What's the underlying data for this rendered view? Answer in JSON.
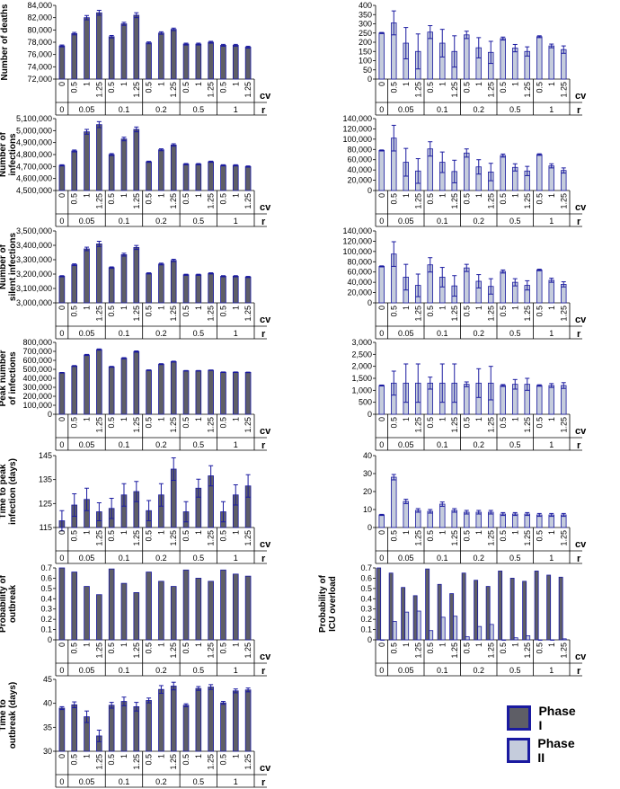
{
  "colors": {
    "phase1": "#5e5e66",
    "phase2": "#c5ccdc",
    "outline": "#1a1aa0"
  },
  "legend": {
    "phase1": "Phase I",
    "phase2": "Phase II"
  },
  "axis_labels": {
    "cv": "cv",
    "r": "r"
  },
  "cv_ticks": [
    "0",
    "0.5",
    "1",
    "1.25",
    "0.5",
    "1",
    "1.25",
    "0.5",
    "1",
    "1.25",
    "0.5",
    "1",
    "1.25",
    "0.5",
    "1",
    "1.25"
  ],
  "r_groups": [
    "0",
    "0.05",
    "0.1",
    "0.2",
    "0.5",
    "1"
  ],
  "chart_data": [
    {
      "id": "deaths-1",
      "type": "bar",
      "ylabel": "Number of deaths",
      "ylim": [
        72000,
        84000
      ],
      "yticks": [
        "72,000",
        "74,000",
        "76,000",
        "78,000",
        "80,000",
        "82,000",
        "84,000"
      ],
      "series": [
        {
          "name": "Phase I",
          "values": [
            77400,
            79400,
            82000,
            82800,
            78900,
            81000,
            82400,
            77900,
            79500,
            80100,
            77700,
            77700,
            78000,
            77500,
            77500,
            77200
          ],
          "errors": [
            150,
            200,
            350,
            400,
            200,
            250,
            400,
            150,
            200,
            200,
            150,
            150,
            150,
            150,
            150,
            150
          ]
        }
      ]
    },
    {
      "id": "deaths-2",
      "type": "bar",
      "ylabel": "",
      "ylim": [
        0,
        400
      ],
      "yticks": [
        "0",
        "50",
        "100",
        "150",
        "200",
        "250",
        "300",
        "350",
        "400"
      ],
      "series": [
        {
          "name": "Phase II",
          "values": [
            250,
            305,
            195,
            150,
            255,
            195,
            150,
            240,
            170,
            145,
            220,
            168,
            150,
            230,
            180,
            160
          ],
          "errors": [
            3,
            65,
            85,
            95,
            35,
            75,
            85,
            20,
            55,
            60,
            8,
            20,
            25,
            5,
            10,
            20
          ]
        }
      ]
    },
    {
      "id": "infections-1",
      "type": "bar",
      "ylabel": "Number of infections",
      "ylim": [
        4500000,
        5100000
      ],
      "yticks": [
        "4,500,000",
        "4,600,000",
        "4,700,000",
        "4,800,000",
        "4,900,000",
        "5,000,000",
        "5,100,000"
      ],
      "series": [
        {
          "name": "Phase I",
          "values": [
            4710000,
            4830000,
            4990000,
            5050000,
            4800000,
            4930000,
            5010000,
            4740000,
            4840000,
            4880000,
            4720000,
            4720000,
            4740000,
            4710000,
            4710000,
            4700000
          ],
          "errors": [
            5000,
            8000,
            20000,
            25000,
            8000,
            15000,
            20000,
            5000,
            8000,
            10000,
            5000,
            5000,
            5000,
            5000,
            5000,
            5000
          ]
        }
      ]
    },
    {
      "id": "infections-2",
      "type": "bar",
      "ylabel": "",
      "ylim": [
        0,
        140000
      ],
      "yticks": [
        "0",
        "20,000",
        "40,000",
        "60,000",
        "80,000",
        "100,000",
        "120,000",
        "140,000"
      ],
      "series": [
        {
          "name": "Phase II",
          "values": [
            78000,
            102000,
            55000,
            38000,
            81000,
            55000,
            37000,
            73000,
            46000,
            36000,
            68000,
            45000,
            38000,
            70000,
            48000,
            39000
          ],
          "errors": [
            1000,
            25000,
            27000,
            24000,
            14000,
            20000,
            22000,
            8000,
            14000,
            17000,
            3000,
            7000,
            9000,
            1500,
            4000,
            5000
          ]
        }
      ]
    },
    {
      "id": "silent-1",
      "type": "bar",
      "ylabel": "Number of silent infections",
      "ylim": [
        3000000,
        3500000
      ],
      "yticks": [
        "3,000,000",
        "3,100,000",
        "3,200,000",
        "3,300,000",
        "3,400,000",
        "3,500,000"
      ],
      "series": [
        {
          "name": "Phase I",
          "values": [
            3185000,
            3265000,
            3375000,
            3410000,
            3245000,
            3335000,
            3385000,
            3205000,
            3270000,
            3295000,
            3195000,
            3195000,
            3205000,
            3185000,
            3185000,
            3180000
          ],
          "errors": [
            4000,
            6000,
            12000,
            18000,
            5000,
            10000,
            14000,
            4000,
            6000,
            8000,
            4000,
            4000,
            4000,
            4000,
            4000,
            4000
          ]
        }
      ]
    },
    {
      "id": "silent-2",
      "type": "bar",
      "ylabel": "",
      "ylim": [
        0,
        140000
      ],
      "yticks": [
        "0",
        "20,000",
        "40,000",
        "60,000",
        "80,000",
        "100,000",
        "120,000",
        "140,000"
      ],
      "series": [
        {
          "name": "Phase II",
          "values": [
            71000,
            95000,
            50000,
            34000,
            74000,
            50000,
            33000,
            68000,
            42000,
            32000,
            61000,
            40000,
            34000,
            64000,
            44000,
            36000
          ],
          "errors": [
            1000,
            24000,
            25000,
            22000,
            14000,
            19000,
            20000,
            7000,
            13000,
            15000,
            3000,
            7000,
            9000,
            1500,
            4000,
            5000
          ]
        }
      ]
    },
    {
      "id": "peak-1",
      "type": "bar",
      "ylabel": "Peak number of infections",
      "ylim": [
        0,
        800000
      ],
      "yticks": [
        "0",
        "100,000",
        "200,000",
        "300,000",
        "400,000",
        "500,000",
        "600,000",
        "700,000",
        "800,000"
      ],
      "series": [
        {
          "name": "Phase I",
          "values": [
            462000,
            537000,
            660000,
            720000,
            528000,
            624000,
            698000,
            490000,
            558000,
            586000,
            484000,
            484000,
            490000,
            468000,
            468000,
            466000
          ],
          "errors": [
            3000,
            5000,
            6000,
            7000,
            5000,
            6000,
            7000,
            4000,
            5000,
            5000,
            3000,
            3000,
            3000,
            3000,
            3000,
            3000
          ]
        }
      ]
    },
    {
      "id": "peak-2",
      "type": "bar",
      "ylabel": "",
      "ylim": [
        0,
        3000
      ],
      "yticks": [
        "0",
        "500",
        "1,000",
        "1,500",
        "2,000",
        "2,500",
        "3,000"
      ],
      "series": [
        {
          "name": "Phase II",
          "values": [
            1200,
            1300,
            1300,
            1300,
            1300,
            1300,
            1300,
            1250,
            1300,
            1300,
            1200,
            1250,
            1250,
            1200,
            1200,
            1200
          ],
          "errors": [
            20,
            500,
            800,
            800,
            250,
            800,
            800,
            100,
            600,
            700,
            40,
            200,
            250,
            30,
            80,
            120
          ]
        }
      ]
    },
    {
      "id": "time-peak-1",
      "type": "bar",
      "ylabel": "Time to peak infection (days)",
      "ylim": [
        115,
        147
      ],
      "yticks": [
        "115",
        "125",
        "135",
        "145"
      ],
      "series": [
        {
          "name": "Phase I",
          "values": [
            118,
            125,
            127.5,
            122,
            123.5,
            129.5,
            131,
            122.5,
            129.5,
            141,
            122,
            132.5,
            138,
            122,
            129.5,
            133.5
          ],
          "errors": [
            4.5,
            5,
            5,
            4,
            4.5,
            5,
            4.5,
            4.5,
            5,
            5,
            4.5,
            4,
            4.5,
            4.5,
            4.5,
            5
          ]
        }
      ]
    },
    {
      "id": "time-peak-2",
      "type": "bar",
      "ylabel": "",
      "ylim": [
        0,
        40
      ],
      "yticks": [
        "0",
        "10",
        "20",
        "30",
        "40"
      ],
      "series": [
        {
          "name": "Phase II",
          "values": [
            7,
            28,
            14.5,
            9.5,
            9,
            13,
            9.5,
            8.5,
            8.5,
            8.5,
            7.5,
            7.5,
            7.5,
            7,
            7,
            7
          ],
          "errors": [
            0.3,
            1.5,
            1.2,
            1,
            1,
            1.2,
            1,
            1,
            1,
            1,
            0.8,
            0.8,
            0.8,
            0.8,
            0.8,
            0.8
          ]
        }
      ]
    },
    {
      "id": "prob-outbreak-1",
      "type": "bar",
      "ylabel": "Probability of outbreak",
      "ylim": [
        0,
        0.7
      ],
      "yticks": [
        "0",
        "0.1",
        "0.2",
        "0.3",
        "0.4",
        "0.5",
        "0.6",
        "0.7"
      ],
      "series": [
        {
          "name": "Phase I",
          "values": [
            0.7,
            0.66,
            0.52,
            0.44,
            0.69,
            0.55,
            0.46,
            0.66,
            0.57,
            0.52,
            0.68,
            0.6,
            0.57,
            0.68,
            0.64,
            0.62
          ]
        }
      ]
    },
    {
      "id": "prob-icu-2",
      "type": "bar",
      "ylabel": "Probability of ICU overload",
      "ylim": [
        0,
        0.7
      ],
      "yticks": [
        "0",
        "0.1",
        "0.2",
        "0.3",
        "0.4",
        "0.5",
        "0.6",
        "0.7"
      ],
      "series": [
        {
          "name": "Phase I",
          "values": [
            0.7,
            0.65,
            0.51,
            0.43,
            0.69,
            0.54,
            0.45,
            0.65,
            0.58,
            0.52,
            0.67,
            0.6,
            0.57,
            0.67,
            0.63,
            0.61
          ]
        },
        {
          "name": "Phase II",
          "values": [
            0.0,
            0.18,
            0.27,
            0.28,
            0.09,
            0.22,
            0.23,
            0.03,
            0.13,
            0.15,
            0.0,
            0.02,
            0.04,
            0.0,
            0.0,
            0.01
          ]
        }
      ]
    },
    {
      "id": "time-outbreak-1",
      "type": "bar",
      "ylabel": "Time to outbreak (days)",
      "ylim": [
        30,
        45
      ],
      "yticks": [
        "30",
        "35",
        "40",
        "45"
      ],
      "series": [
        {
          "name": "Phase I",
          "values": [
            39,
            39.7,
            37.2,
            33.2,
            39.6,
            40.4,
            39.3,
            40.6,
            42.9,
            43.6,
            39.6,
            43.1,
            43.4,
            40.1,
            42.6,
            42.8
          ],
          "errors": [
            0.3,
            0.6,
            1.2,
            1.2,
            0.6,
            0.9,
            0.9,
            0.5,
            0.8,
            0.8,
            0.3,
            0.4,
            0.5,
            0.3,
            0.4,
            0.4
          ]
        }
      ]
    }
  ]
}
